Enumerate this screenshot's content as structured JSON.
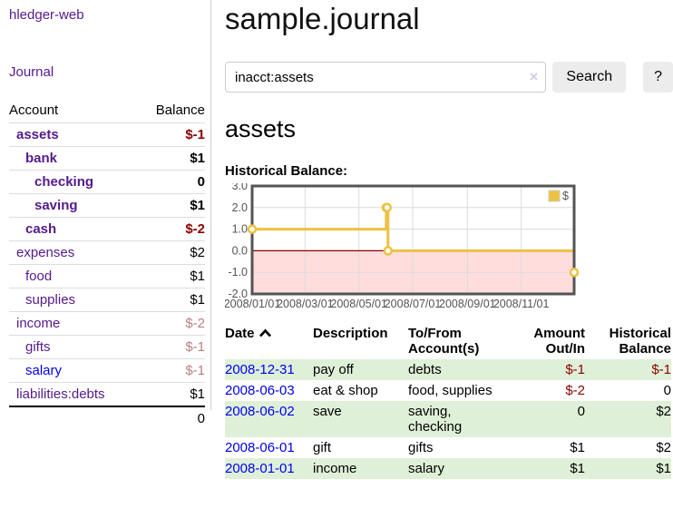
{
  "sidebar": {
    "brand": "hledger-web",
    "nav": {
      "journal": "Journal"
    },
    "table": {
      "account_header": "Account",
      "balance_header": "Balance",
      "accounts": [
        {
          "name": "assets",
          "balance": "$-1"
        },
        {
          "name": "bank",
          "balance": "$1"
        },
        {
          "name": "checking",
          "balance": "0"
        },
        {
          "name": "saving",
          "balance": "$1"
        },
        {
          "name": "cash",
          "balance": "$-2"
        },
        {
          "name": "expenses",
          "balance": "$2"
        },
        {
          "name": "food",
          "balance": "$1"
        },
        {
          "name": "supplies",
          "balance": "$1"
        },
        {
          "name": "income",
          "balance": "$-2"
        },
        {
          "name": "gifts",
          "balance": "$-1"
        },
        {
          "name": "salary",
          "balance": "$-1"
        },
        {
          "name": "liabilities:debts",
          "balance": "$1"
        }
      ],
      "total": "0"
    }
  },
  "header": {
    "title": "sample.journal"
  },
  "search": {
    "value": "inacct:assets",
    "clear_icon": "×",
    "search_button": "Search",
    "help_button": "?"
  },
  "account_view": {
    "heading": "assets",
    "chart_label": "Historical Balance:"
  },
  "chart_data": {
    "type": "line",
    "step": true,
    "series": [
      {
        "name": "$",
        "color": "#edc240",
        "points": [
          [
            "2008-01-01",
            1
          ],
          [
            "2008-06-01",
            2
          ],
          [
            "2008-06-02",
            2
          ],
          [
            "2008-06-03",
            0
          ],
          [
            "2008-12-31",
            -1
          ]
        ]
      }
    ],
    "x_range": [
      "2008-01-01",
      "2008-12-31"
    ],
    "ylim": [
      -2,
      3
    ],
    "y_ticks": [
      3.0,
      2.0,
      1.0,
      0.0,
      -1.0,
      -2.0
    ],
    "y_tick_labels": [
      "3.0",
      "2.0",
      "1.0",
      "0.0",
      "-1.0",
      "-2.0"
    ],
    "x_tick_labels": [
      "2008/01/01",
      "2008/03/01",
      "2008/05/01",
      "2008/07/01",
      "2008/09/01",
      "2008/11/01"
    ],
    "legend": {
      "label": "$",
      "position": "top-right"
    },
    "grid": true,
    "grid_color": "#dcdcdc",
    "border_color": "#545454",
    "tick_text_color": "#545454",
    "negative_region_color": "#ffdddd",
    "zero_line_color": "#880000"
  },
  "register": {
    "columns": [
      "Date",
      "Description",
      "To/From\nAccount(s)",
      "Amount\nOut/In",
      "Historical\nBalance"
    ],
    "sort": {
      "column": "Date",
      "direction": "ascending"
    },
    "rows": [
      {
        "date": "2008-12-31",
        "description": "pay off",
        "accounts": "debts",
        "amount": "$-1",
        "balance": "$-1"
      },
      {
        "date": "2008-06-03",
        "description": "eat & shop",
        "accounts": "food, supplies",
        "amount": "$-2",
        "balance": "0"
      },
      {
        "date": "2008-06-02",
        "description": "save",
        "accounts": "saving,\nchecking",
        "amount": "0",
        "balance": "$2"
      },
      {
        "date": "2008-06-01",
        "description": "gift",
        "accounts": "gifts",
        "amount": "$1",
        "balance": "$2"
      },
      {
        "date": "2008-01-01",
        "description": "income",
        "accounts": "salary",
        "amount": "$1",
        "balance": "$1"
      }
    ]
  }
}
